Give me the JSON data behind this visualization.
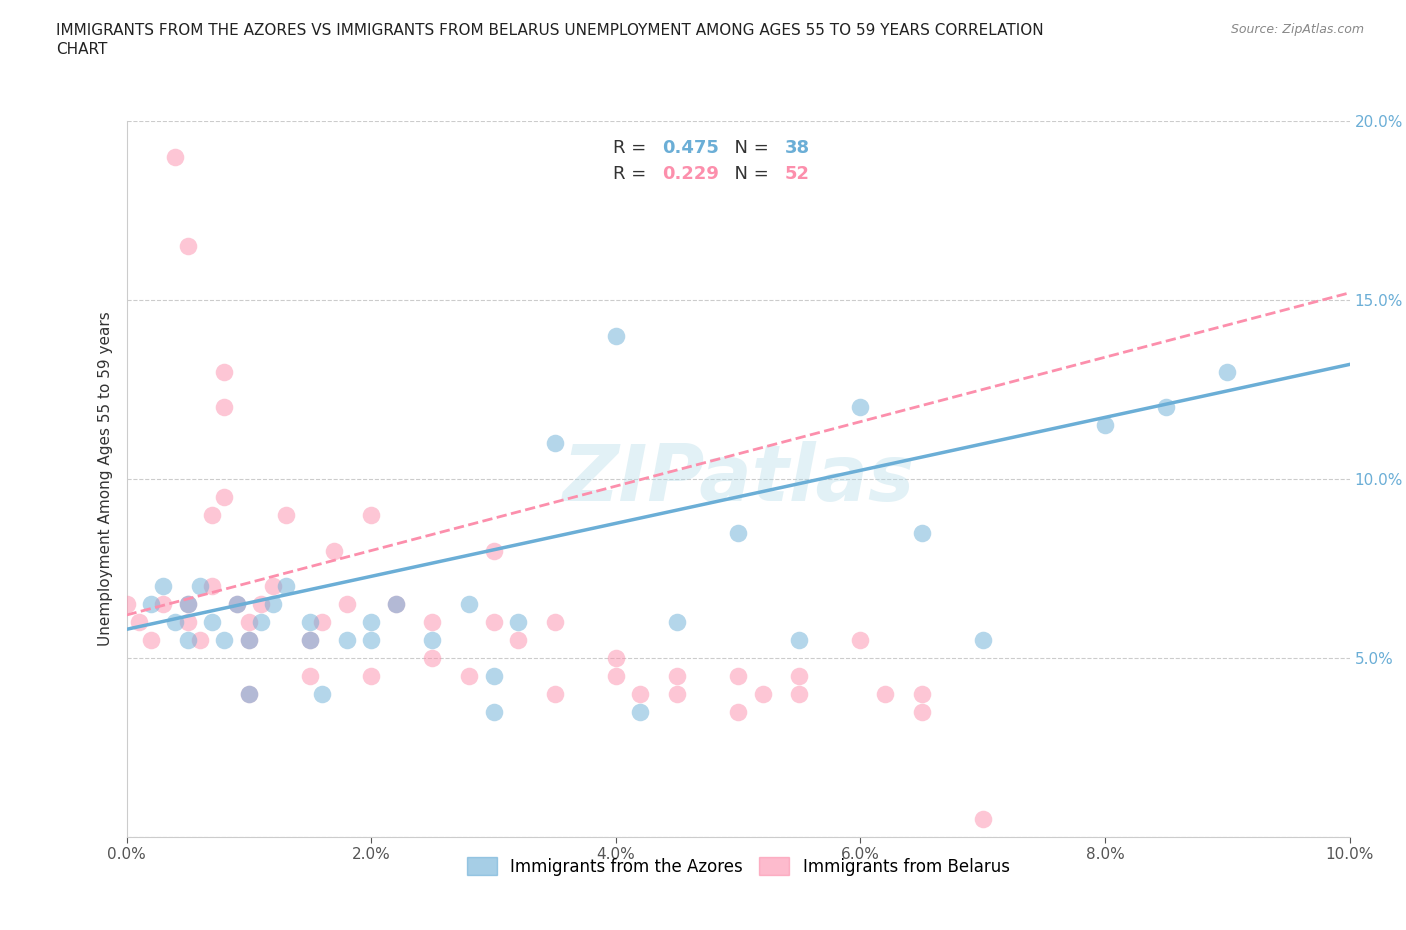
{
  "title_line1": "IMMIGRANTS FROM THE AZORES VS IMMIGRANTS FROM BELARUS UNEMPLOYMENT AMONG AGES 55 TO 59 YEARS CORRELATION",
  "title_line2": "CHART",
  "source": "Source: ZipAtlas.com",
  "ylabel": "Unemployment Among Ages 55 to 59 years",
  "xlim": [
    0.0,
    0.1
  ],
  "ylim": [
    0.0,
    0.2
  ],
  "xticks": [
    0.0,
    0.02,
    0.04,
    0.06,
    0.08,
    0.1
  ],
  "yticks": [
    0.0,
    0.05,
    0.1,
    0.15,
    0.2
  ],
  "xticklabels": [
    "0.0%",
    "2.0%",
    "4.0%",
    "6.0%",
    "8.0%",
    "10.0%"
  ],
  "yticklabels": [
    "",
    "5.0%",
    "10.0%",
    "15.0%",
    "20.0%"
  ],
  "azores_color": "#6baed6",
  "belarus_color": "#fc8fac",
  "azores_R": 0.475,
  "azores_N": 38,
  "belarus_R": 0.229,
  "belarus_N": 52,
  "watermark": "ZIPatlas",
  "legend_label_azores": "Immigrants from the Azores",
  "legend_label_belarus": "Immigrants from Belarus",
  "azores_x": [
    0.002,
    0.003,
    0.004,
    0.005,
    0.005,
    0.006,
    0.007,
    0.008,
    0.009,
    0.01,
    0.01,
    0.011,
    0.012,
    0.013,
    0.015,
    0.015,
    0.016,
    0.018,
    0.02,
    0.02,
    0.022,
    0.025,
    0.028,
    0.03,
    0.03,
    0.032,
    0.035,
    0.04,
    0.042,
    0.045,
    0.05,
    0.055,
    0.06,
    0.065,
    0.07,
    0.08,
    0.085,
    0.09
  ],
  "azores_y": [
    0.065,
    0.07,
    0.06,
    0.055,
    0.065,
    0.07,
    0.06,
    0.055,
    0.065,
    0.04,
    0.055,
    0.06,
    0.065,
    0.07,
    0.055,
    0.06,
    0.04,
    0.055,
    0.055,
    0.06,
    0.065,
    0.055,
    0.065,
    0.035,
    0.045,
    0.06,
    0.11,
    0.14,
    0.035,
    0.06,
    0.085,
    0.055,
    0.12,
    0.085,
    0.055,
    0.115,
    0.12,
    0.13
  ],
  "belarus_x": [
    0.0,
    0.001,
    0.002,
    0.003,
    0.004,
    0.005,
    0.005,
    0.006,
    0.007,
    0.007,
    0.008,
    0.008,
    0.009,
    0.01,
    0.01,
    0.01,
    0.011,
    0.012,
    0.013,
    0.015,
    0.015,
    0.016,
    0.017,
    0.018,
    0.02,
    0.02,
    0.022,
    0.025,
    0.025,
    0.028,
    0.03,
    0.03,
    0.032,
    0.035,
    0.035,
    0.04,
    0.04,
    0.042,
    0.045,
    0.045,
    0.05,
    0.05,
    0.052,
    0.055,
    0.055,
    0.06,
    0.062,
    0.065,
    0.065,
    0.07,
    0.005,
    0.008
  ],
  "belarus_y": [
    0.065,
    0.06,
    0.055,
    0.065,
    0.19,
    0.06,
    0.065,
    0.055,
    0.07,
    0.09,
    0.095,
    0.12,
    0.065,
    0.04,
    0.055,
    0.06,
    0.065,
    0.07,
    0.09,
    0.045,
    0.055,
    0.06,
    0.08,
    0.065,
    0.045,
    0.09,
    0.065,
    0.06,
    0.05,
    0.045,
    0.06,
    0.08,
    0.055,
    0.04,
    0.06,
    0.045,
    0.05,
    0.04,
    0.04,
    0.045,
    0.035,
    0.045,
    0.04,
    0.04,
    0.045,
    0.055,
    0.04,
    0.035,
    0.04,
    0.005,
    0.165,
    0.13
  ],
  "azores_trend_x": [
    0.0,
    0.1
  ],
  "azores_trend_y": [
    0.058,
    0.132
  ],
  "belarus_trend_x": [
    0.0,
    0.1
  ],
  "belarus_trend_y": [
    0.062,
    0.152
  ],
  "background_color": "#ffffff"
}
